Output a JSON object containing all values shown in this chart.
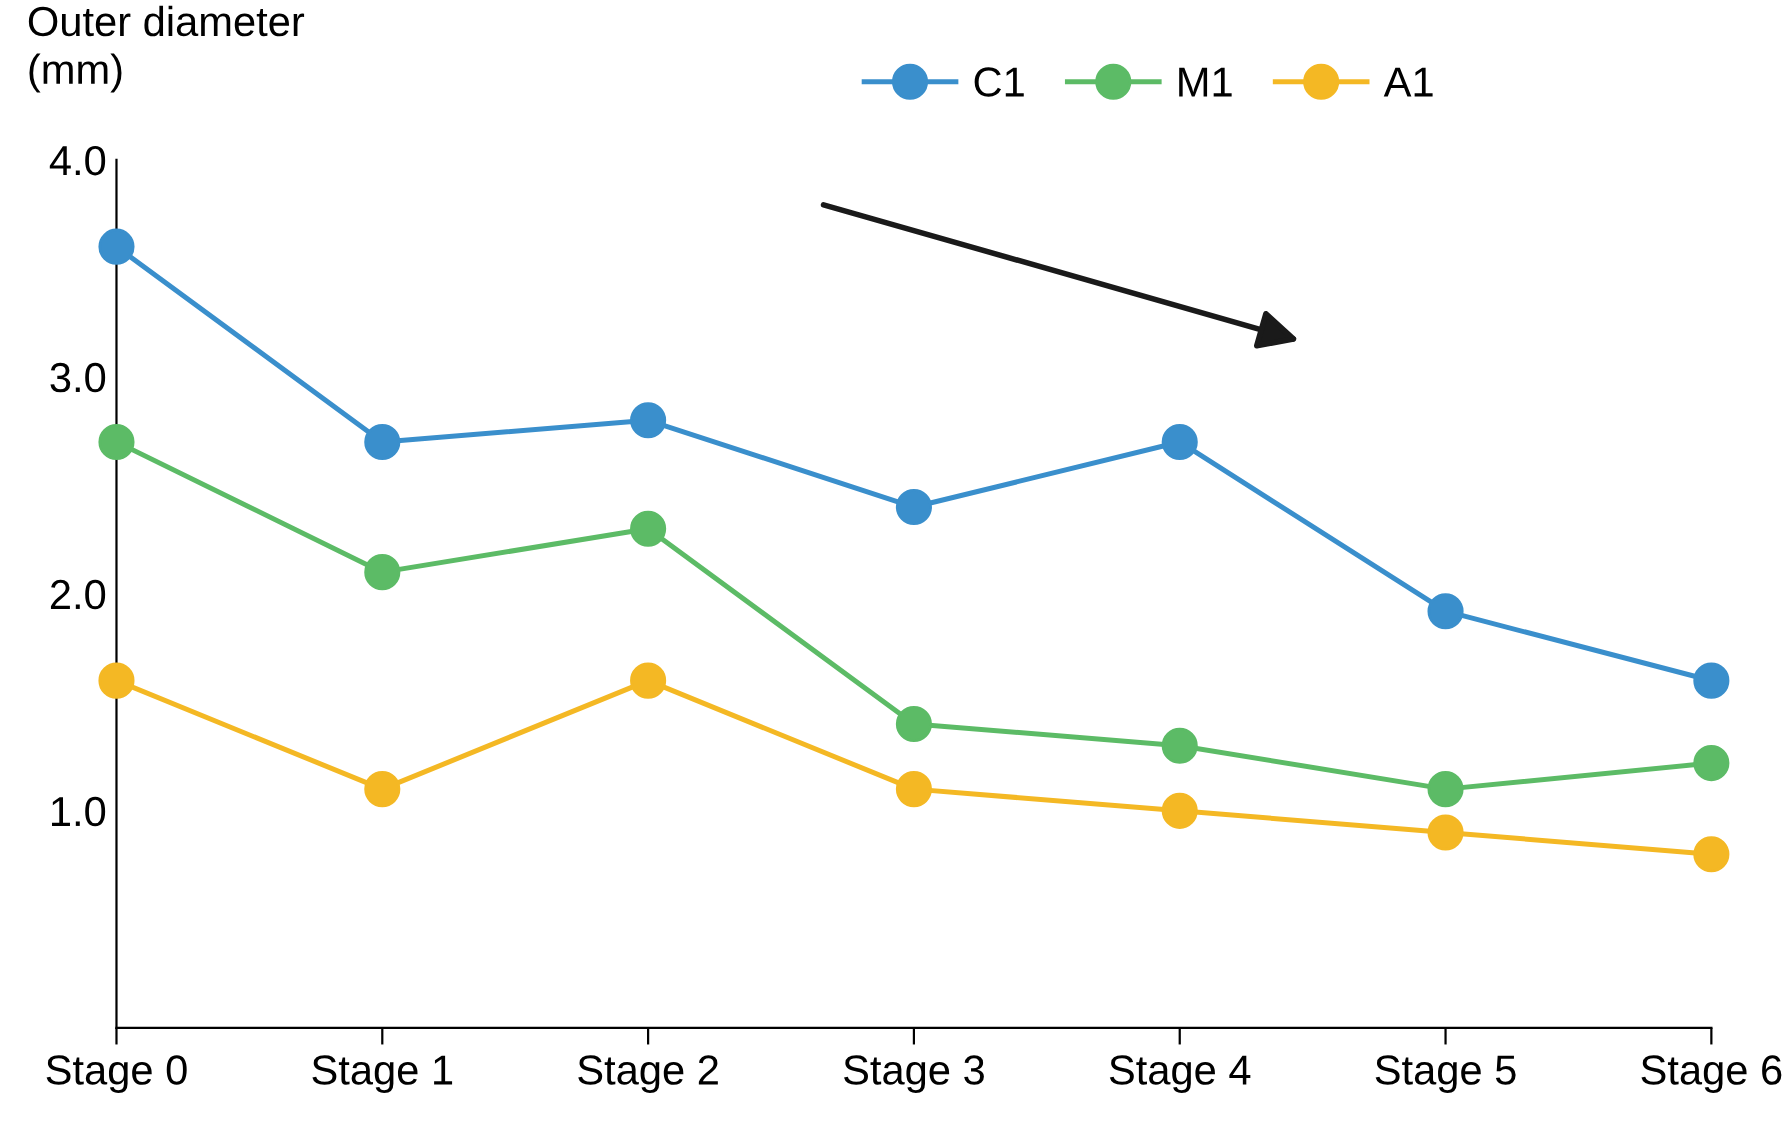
{
  "chart_data": {
    "type": "line",
    "ylabel": "Outer diameter\n(mm)",
    "categories": [
      "Stage 0",
      "Stage 1",
      "Stage 2",
      "Stage 3",
      "Stage 4",
      "Stage 5",
      "Stage 6"
    ],
    "series": [
      {
        "name": "C1",
        "color": "#3a8fcc",
        "values": [
          3.6,
          2.7,
          2.8,
          2.4,
          2.7,
          1.92,
          1.6
        ]
      },
      {
        "name": "M1",
        "color": "#5cbb66",
        "values": [
          2.7,
          2.1,
          2.3,
          1.4,
          1.3,
          1.1,
          1.22
        ]
      },
      {
        "name": "A1",
        "color": "#f4b824",
        "values": [
          1.6,
          1.1,
          1.6,
          1.1,
          1.0,
          0.9,
          0.8
        ]
      }
    ],
    "ylim": [
      0,
      4.0
    ],
    "yticks": [
      {
        "value": 1.0,
        "label": "1.0"
      },
      {
        "value": 2.0,
        "label": "2.0"
      },
      {
        "value": 3.0,
        "label": "3.0"
      },
      {
        "value": 4.0,
        "label": "4.0"
      }
    ],
    "marker": "circle",
    "line_style": "solid",
    "grid": false,
    "legend": "top right"
  }
}
